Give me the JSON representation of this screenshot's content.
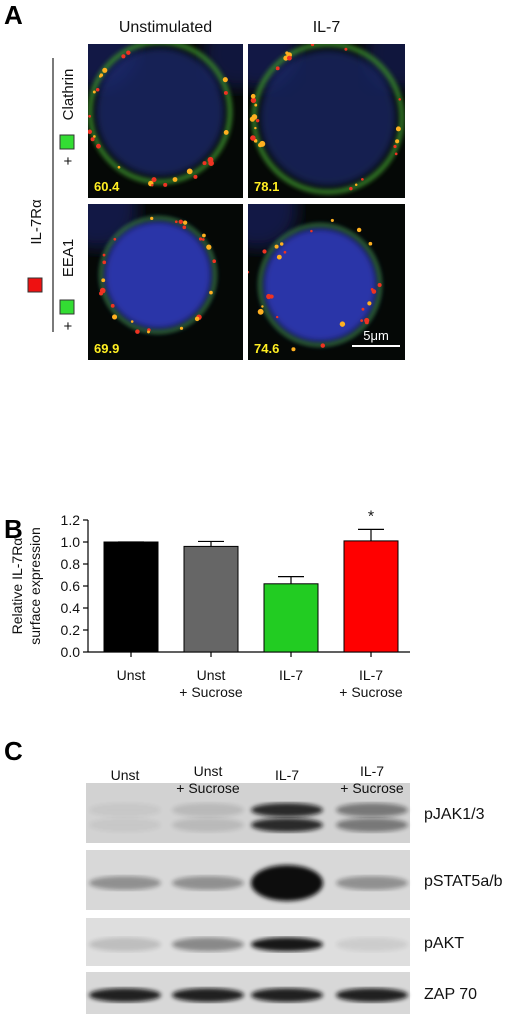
{
  "panel_a": {
    "label": "A",
    "columns": [
      "Unstimulated",
      "IL-7"
    ],
    "stain": "IL-7Rα",
    "rows": [
      {
        "prefix": "+",
        "stain": "Clathrin"
      },
      {
        "prefix": "+",
        "stain": "EEA1"
      }
    ],
    "colocalization": [
      [
        60.4,
        78.1
      ],
      [
        69.9,
        74.6
      ]
    ],
    "scale_bar": "5μm"
  },
  "chart_data": {
    "type": "bar",
    "panel_label": "B",
    "ylabel": [
      "Relative IL-7Rα",
      "surface expression"
    ],
    "categories": [
      "Unst",
      "Unst\n+ Sucrose",
      "IL-7",
      "IL-7\n+ Sucrose"
    ],
    "values": [
      1.0,
      0.96,
      0.62,
      1.01
    ],
    "errors": [
      0,
      0.045,
      0.065,
      0.105
    ],
    "colors": [
      "#000000",
      "#666666",
      "#22cc22",
      "#ff0000"
    ],
    "annotations": [
      "*"
    ],
    "ylim": [
      0,
      1.2
    ],
    "yticks": [
      {
        "value": 0,
        "label": "0.0"
      },
      0.2,
      0.4,
      0.6,
      0.8,
      {
        "value": 1,
        "label": "1.0"
      },
      1.2
    ]
  },
  "panel_c": {
    "label": "C",
    "lanes": [
      "Unst",
      "Unst\n+ Sucrose",
      "IL-7",
      "IL-7\n+ Sucrose"
    ],
    "blots": [
      "pJAK1/3",
      "pSTAT5a/b",
      "pAKT",
      "ZAP 70"
    ]
  }
}
